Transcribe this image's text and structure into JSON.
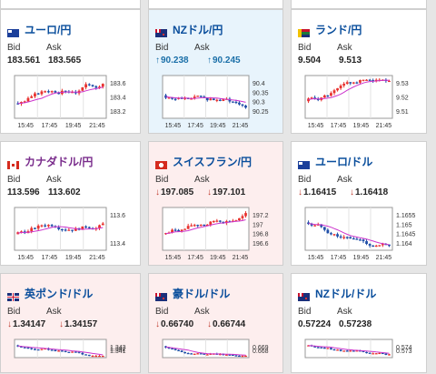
{
  "labels": {
    "bid": "Bid",
    "ask": "Ask"
  },
  "cards": [
    {
      "name": "ユーロ/円",
      "flag": "eu",
      "bid": "183.561",
      "ask": "183.565",
      "bid_dir": "",
      "ask_dir": "",
      "highlight": "none",
      "chart": {
        "ticks": [
          "183.6",
          "183.4",
          "183.2"
        ],
        "times": [
          "15:45",
          "17:45",
          "19:45",
          "21:45"
        ]
      }
    },
    {
      "name": "NZドル/円",
      "flag": "nz",
      "bid": "90.238",
      "ask": "90.245",
      "bid_dir": "up",
      "ask_dir": "up",
      "highlight": "blue",
      "chart": {
        "ticks": [
          "90.4",
          "90.35",
          "90.3",
          "90.25"
        ],
        "times": [
          "15:45",
          "17:45",
          "19:45",
          "21:45"
        ]
      }
    },
    {
      "name": "ランド/円",
      "flag": "za",
      "bid": "9.504",
      "ask": "9.513",
      "bid_dir": "",
      "ask_dir": "",
      "highlight": "none",
      "chart": {
        "ticks": [
          "9.53",
          "9.52",
          "9.51"
        ],
        "times": [
          "15:45",
          "17:45",
          "19:45",
          "21:45"
        ]
      }
    },
    {
      "name": "カナダドル/円",
      "flag": "ca",
      "bid": "113.596",
      "ask": "113.602",
      "bid_dir": "",
      "ask_dir": "",
      "highlight": "none",
      "chart": {
        "ticks": [
          "113.6",
          "113.4"
        ],
        "times": [
          "15:45",
          "17:45",
          "19:45",
          "21:45"
        ]
      }
    },
    {
      "name": "スイスフラン/円",
      "flag": "ch",
      "bid": "197.085",
      "ask": "197.101",
      "bid_dir": "down",
      "ask_dir": "down",
      "highlight": "pink",
      "chart": {
        "ticks": [
          "197.2",
          "197",
          "196.8",
          "196.6"
        ],
        "times": [
          "15:45",
          "17:45",
          "19:45",
          "21:45"
        ]
      }
    },
    {
      "name": "ユーロ/ドル",
      "flag": "eu",
      "bid": "1.16415",
      "ask": "1.16418",
      "bid_dir": "down",
      "ask_dir": "down",
      "highlight": "none",
      "chart": {
        "ticks": [
          "1.1655",
          "1.165",
          "1.1645",
          "1.164"
        ],
        "times": [
          "15:45",
          "17:45",
          "19:45",
          "21:45"
        ]
      }
    },
    {
      "name": "英ポンド/ドル",
      "flag": "gb",
      "bid": "1.34147",
      "ask": "1.34157",
      "bid_dir": "down",
      "ask_dir": "down",
      "highlight": "pink",
      "chart": {
        "ticks": [
          "1.343",
          "1.342",
          "1.341"
        ],
        "times": []
      }
    },
    {
      "name": "豪ドル/ドル",
      "flag": "au",
      "bid": "0.66740",
      "ask": "0.66744",
      "bid_dir": "down",
      "ask_dir": "down",
      "highlight": "pink",
      "chart": {
        "ticks": [
          "0.669",
          "0.668"
        ],
        "times": []
      }
    },
    {
      "name": "NZドル/ドル",
      "flag": "nz",
      "bid": "0.57224",
      "ask": "0.57238",
      "bid_dir": "",
      "ask_dir": "",
      "highlight": "none",
      "chart": {
        "ticks": [
          "0.574",
          "0.573"
        ],
        "times": []
      }
    }
  ],
  "colors": {
    "up_candle": "#e8322f",
    "down_candle": "#1f4ea8",
    "ma_line": "#cc33cc",
    "name_blue": "#0a4e9c",
    "name_purple": "#7a2d8c"
  }
}
